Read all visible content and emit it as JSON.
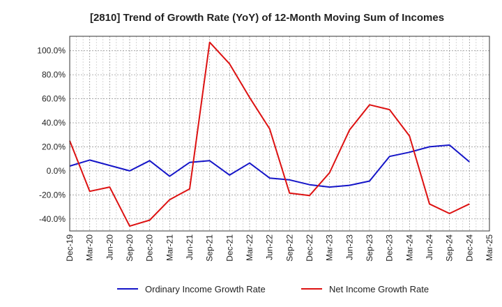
{
  "chart_data": {
    "type": "line",
    "title": "[2810]  Trend of Growth Rate (YoY) of 12-Month Moving Sum of Incomes",
    "x": [
      "Dec-19",
      "Mar-20",
      "Jun-20",
      "Sep-20",
      "Dec-20",
      "Mar-21",
      "Jun-21",
      "Sep-21",
      "Dec-21",
      "Mar-22",
      "Jun-22",
      "Sep-22",
      "Dec-22",
      "Mar-23",
      "Jun-23",
      "Sep-23",
      "Dec-23",
      "Mar-24",
      "Jun-24",
      "Sep-24",
      "Dec-24"
    ],
    "x_ticks": [
      "Dec-19",
      "Mar-20",
      "Jun-20",
      "Sep-20",
      "Dec-20",
      "Mar-21",
      "Jun-21",
      "Sep-21",
      "Dec-21",
      "Mar-22",
      "Jun-22",
      "Sep-22",
      "Dec-22",
      "Mar-23",
      "Jun-23",
      "Sep-23",
      "Dec-23",
      "Mar-24",
      "Jun-24",
      "Sep-24",
      "Dec-24",
      "Mar-25"
    ],
    "ylim": [
      -50,
      112
    ],
    "y_ticks": [
      -40,
      -20,
      0,
      20,
      40,
      60,
      80,
      100
    ],
    "y_tick_labels": [
      "-40.0%",
      "-20.0%",
      "0.0%",
      "20.0%",
      "40.0%",
      "60.0%",
      "80.0%",
      "100.0%"
    ],
    "grid": true,
    "legend_position": "bottom",
    "series": [
      {
        "name": "Ordinary Income Growth Rate",
        "color": "#1515c8",
        "values": [
          4,
          9,
          4.5,
          0,
          8.5,
          -4.5,
          7,
          8.5,
          -3.5,
          6.5,
          -6,
          -7.5,
          -11.5,
          -13.5,
          -12,
          -8.5,
          12,
          15.5,
          20,
          21.5,
          7.5
        ]
      },
      {
        "name": "Net Income Growth Rate",
        "color": "#dd1111",
        "values": [
          25,
          -17,
          -13.5,
          -46,
          -41,
          -24,
          -15,
          107,
          89,
          61,
          35,
          -18.5,
          -20.5,
          -1.5,
          34,
          55,
          51,
          29,
          -27.5,
          -35.5,
          -27.5
        ]
      }
    ]
  }
}
